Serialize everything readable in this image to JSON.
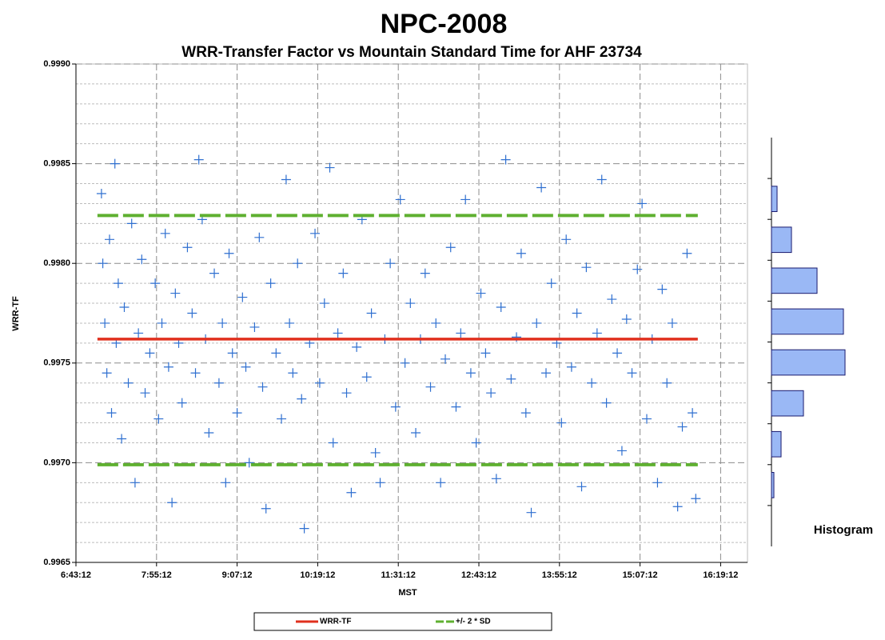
{
  "chart_data": [
    {
      "type": "scatter",
      "title": "NPC-2008",
      "subtitle": "WRR-Transfer Factor vs Mountain Standard Time for AHF 23734",
      "x_label": "MST",
      "y_label": "WRR-TF",
      "xlim": [
        6.72,
        16.72
      ],
      "xticks": [
        {
          "value": 6.72,
          "label": "6:43:12"
        },
        {
          "value": 7.92,
          "label": "7:55:12"
        },
        {
          "value": 9.12,
          "label": "9:07:12"
        },
        {
          "value": 10.32,
          "label": "10:19:12"
        },
        {
          "value": 11.52,
          "label": "11:31:12"
        },
        {
          "value": 12.72,
          "label": "12:43:12"
        },
        {
          "value": 13.92,
          "label": "13:55:12"
        },
        {
          "value": 15.12,
          "label": "15:07:12"
        },
        {
          "value": 16.32,
          "label": "16:19:12"
        }
      ],
      "ylim": [
        0.9965,
        0.999
      ],
      "yticks": [
        0.9965,
        {
          "value": 0.997,
          "label": "0.9970"
        },
        0.9975,
        {
          "value": 0.998,
          "label": "0.9980"
        },
        0.9985,
        {
          "value": 0.999,
          "label": "0.9990"
        }
      ],
      "y_minor_ticks": [
        0.9966,
        0.9967,
        0.9968,
        0.9969,
        0.9971,
        0.9972,
        0.9973,
        0.9974,
        0.9976,
        0.9977,
        0.9978,
        0.9979,
        0.9981,
        0.9982,
        0.9983,
        0.9984,
        0.9986,
        0.9987,
        0.9988,
        0.9989
      ],
      "grid": true,
      "legend": "bottom",
      "color": "#2e6fd0",
      "marker": "plus",
      "x": [
        7.1,
        7.12,
        7.15,
        7.18,
        7.22,
        7.25,
        7.3,
        7.32,
        7.35,
        7.4,
        7.44,
        7.5,
        7.55,
        7.6,
        7.65,
        7.7,
        7.75,
        7.82,
        7.9,
        7.95,
        8.0,
        8.05,
        8.1,
        8.15,
        8.2,
        8.25,
        8.3,
        8.38,
        8.45,
        8.5,
        8.55,
        8.6,
        8.65,
        8.7,
        8.78,
        8.85,
        8.9,
        8.95,
        9.0,
        9.05,
        9.12,
        9.2,
        9.25,
        9.3,
        9.38,
        9.45,
        9.5,
        9.55,
        9.62,
        9.7,
        9.78,
        9.85,
        9.9,
        9.95,
        10.02,
        10.08,
        10.12,
        10.2,
        10.28,
        10.35,
        10.42,
        10.5,
        10.55,
        10.62,
        10.7,
        10.75,
        10.82,
        10.9,
        10.98,
        11.05,
        11.12,
        11.18,
        11.25,
        11.32,
        11.4,
        11.48,
        11.55,
        11.62,
        11.7,
        11.78,
        11.85,
        11.92,
        12.0,
        12.08,
        12.15,
        12.22,
        12.3,
        12.38,
        12.45,
        12.52,
        12.6,
        12.68,
        12.75,
        12.82,
        12.9,
        12.98,
        13.05,
        13.12,
        13.2,
        13.28,
        13.35,
        13.42,
        13.5,
        13.58,
        13.65,
        13.72,
        13.8,
        13.88,
        13.95,
        14.02,
        14.1,
        14.18,
        14.25,
        14.32,
        14.4,
        14.48,
        14.55,
        14.62,
        14.7,
        14.78,
        14.85,
        14.92,
        15.0,
        15.08,
        15.15,
        15.22,
        15.3,
        15.38,
        15.45,
        15.52,
        15.6,
        15.68,
        15.75,
        15.82,
        15.9,
        15.95
      ],
      "values": [
        0.99835,
        0.998,
        0.9977,
        0.99745,
        0.99812,
        0.99725,
        0.9985,
        0.9976,
        0.9979,
        0.99712,
        0.99778,
        0.9974,
        0.9982,
        0.9969,
        0.99765,
        0.99802,
        0.99735,
        0.99755,
        0.9979,
        0.99722,
        0.9977,
        0.99815,
        0.99748,
        0.9968,
        0.99785,
        0.9976,
        0.9973,
        0.99808,
        0.99775,
        0.99745,
        0.99852,
        0.99822,
        0.99762,
        0.99715,
        0.99795,
        0.9974,
        0.9977,
        0.9969,
        0.99805,
        0.99755,
        0.99725,
        0.99783,
        0.99748,
        0.997,
        0.99768,
        0.99813,
        0.99738,
        0.99677,
        0.9979,
        0.99755,
        0.99722,
        0.99842,
        0.9977,
        0.99745,
        0.998,
        0.99732,
        0.99667,
        0.9976,
        0.99815,
        0.9974,
        0.9978,
        0.99848,
        0.9971,
        0.99765,
        0.99795,
        0.99735,
        0.99685,
        0.99758,
        0.99822,
        0.99743,
        0.99775,
        0.99705,
        0.9969,
        0.99762,
        0.998,
        0.99728,
        0.99832,
        0.9975,
        0.9978,
        0.99715,
        0.99762,
        0.99795,
        0.99738,
        0.9977,
        0.9969,
        0.99752,
        0.99808,
        0.99728,
        0.99765,
        0.99832,
        0.99745,
        0.9971,
        0.99785,
        0.99755,
        0.99735,
        0.99692,
        0.99778,
        0.99852,
        0.99742,
        0.99763,
        0.99805,
        0.99725,
        0.99675,
        0.9977,
        0.99838,
        0.99745,
        0.9979,
        0.9976,
        0.9972,
        0.99812,
        0.99748,
        0.99775,
        0.99688,
        0.99798,
        0.9974,
        0.99765,
        0.99842,
        0.9973,
        0.99782,
        0.99755,
        0.99706,
        0.99772,
        0.99745,
        0.99797,
        0.9983,
        0.99722,
        0.99762,
        0.9969,
        0.99787,
        0.9974,
        0.9977,
        0.99678,
        0.99718,
        0.99805,
        0.99725,
        0.99682
      ],
      "series": [
        {
          "name": "WRR-TF",
          "color": "#e0301e",
          "style": "solid",
          "x": [
            7.04,
            15.98
          ],
          "values": [
            0.99762,
            0.99762
          ]
        },
        {
          "name": "+/- 2 * SD",
          "color": "#5fb030",
          "style": "dashed",
          "x": [
            7.04,
            15.98,
            null,
            7.04,
            15.98
          ],
          "values": [
            0.99824,
            0.99824,
            null,
            0.99699,
            0.99699
          ]
        }
      ]
    },
    {
      "type": "histogram",
      "title": "Histogram",
      "orientation": "horizontal",
      "color": "#9ab8f5",
      "bins": [
        0.99675,
        0.99695,
        0.99715,
        0.99735,
        0.99755,
        0.99775,
        0.99795,
        0.99815,
        0.99835
      ],
      "values": [
        3,
        12,
        40,
        92,
        90,
        57,
        25,
        7
      ],
      "ylim": [
        0.99655,
        0.99855
      ],
      "xlim": [
        0,
        100
      ]
    }
  ]
}
